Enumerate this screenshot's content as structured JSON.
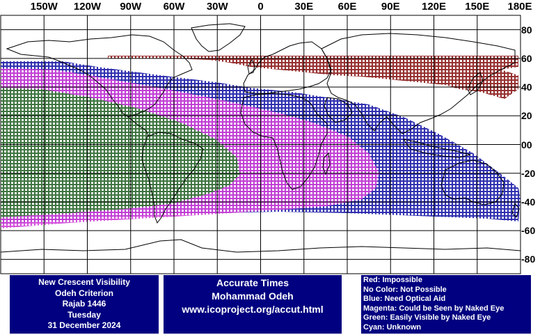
{
  "map": {
    "longitude_labels": [
      "150W",
      "120W",
      "90W",
      "60W",
      "30W",
      "0",
      "30E",
      "60E",
      "90E",
      "120E",
      "150E",
      "180E"
    ],
    "latitude_labels": [
      "80",
      "60",
      "40",
      "20",
      "00",
      "-20",
      "-40",
      "-60",
      "-80"
    ],
    "colors": {
      "red": "#8b1a1a",
      "blue": "#1a1aa8",
      "magenta": "#d040d8",
      "green": "#2f7a2f",
      "grid": "#000000"
    }
  },
  "info_left": {
    "line1": "New Crescent Visibility",
    "line2": "Odeh Criterion",
    "line3": "Rajab 1446",
    "line4": "Tuesday",
    "line5": "31 December 2024"
  },
  "info_middle": {
    "line1": "Accurate Times",
    "line2": "Mohammad Odeh",
    "line3": "www.icoproject.org/accut.html"
  },
  "legend": {
    "red": "Red: Impossible",
    "none": "No Color: Not Possible",
    "blue": "Blue: Need Optical Aid",
    "magenta": "Magenta: Could be Seen by Naked Eye",
    "green": "Green: Easily Visible by Naked Eye",
    "cyan": "Cyan: Unknown"
  }
}
